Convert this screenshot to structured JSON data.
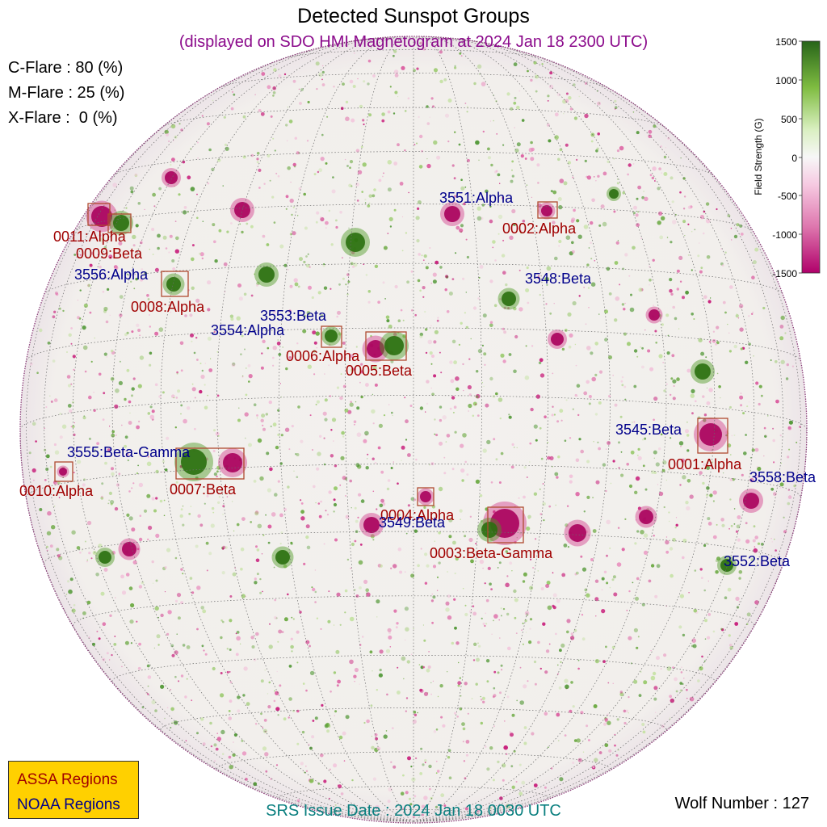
{
  "title": "Detected Sunspot Groups",
  "subtitle": "(displayed on SDO HMI Magnetogram at 2024 Jan 18 2300 UTC)",
  "flare_probabilities": {
    "c": "C-Flare : 80 (%)",
    "m": "M-Flare : 25 (%)",
    "x": "X-Flare :  0 (%)"
  },
  "colorbar": {
    "label": "Field Strength (G)",
    "ticks": [
      "1500",
      "1000",
      "500",
      "0",
      "-500",
      "-1000",
      "-1500"
    ],
    "positive_color": "#2e7d12",
    "negative_color": "#c3006b"
  },
  "legend": {
    "assa": "ASSA Regions",
    "noaa": "NOAA Regions",
    "assa_color": "#a00000",
    "noaa_color": "#00008b",
    "background": "#ffd000"
  },
  "srs_issue_date": "SRS Issue Date : 2024 Jan 18 0030 UTC",
  "wolf_number": "Wolf Number : 127",
  "assa_regions": [
    {
      "id": "0011:Alpha",
      "lat": 36,
      "lon": -64
    },
    {
      "id": "0009:Beta",
      "lat": 35,
      "lon": -61
    },
    {
      "id": "0008:Alpha",
      "lat": 24,
      "lon": -50
    },
    {
      "id": "0006:Alpha",
      "lat": 14,
      "lon": -20
    },
    {
      "id": "0005:Beta",
      "lat": 13,
      "lon": -5
    },
    {
      "id": "0002:Alpha",
      "lat": 37,
      "lon": 30
    },
    {
      "id": "0001:Alpha",
      "lat": -3,
      "lon": 62
    },
    {
      "id": "0007:Beta",
      "lat": -8,
      "lon": -36
    },
    {
      "id": "0010:Alpha",
      "lat": -8,
      "lon": -72
    },
    {
      "id": "0004:Alpha",
      "lat": -16,
      "lon": 2
    },
    {
      "id": "0003:Beta-Gamma",
      "lat": -21,
      "lon": 20
    }
  ],
  "noaa_regions": [
    {
      "id": "3551:Alpha"
    },
    {
      "id": "3548:Beta"
    },
    {
      "id": "3556:Alpha"
    },
    {
      "id": "3553:Beta"
    },
    {
      "id": "3554:Alpha"
    },
    {
      "id": "3545:Beta"
    },
    {
      "id": "3555:Beta-Gamma"
    },
    {
      "id": "3558:Beta"
    },
    {
      "id": "3549:Beta"
    },
    {
      "id": "3552:Beta"
    }
  ]
}
